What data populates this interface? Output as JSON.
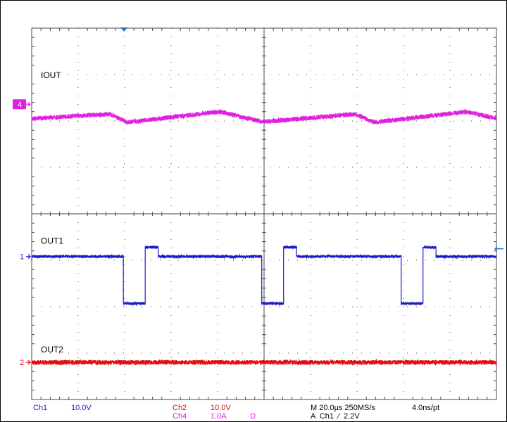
{
  "chart_data": {
    "type": "line",
    "time_per_division_us": 20,
    "divisions": {
      "x": 10,
      "y": 8
    },
    "series": [
      {
        "name": "IOUT",
        "channel_marker": "4",
        "color": "#e020e0",
        "pattern": "triangle",
        "x_divs": [
          0,
          1.68,
          2.05,
          4.05,
          4.97,
          6.95,
          7.37,
          9.35,
          10
        ],
        "y_divs": [
          1.95,
          1.85,
          2.03,
          1.8,
          2.02,
          1.85,
          2.03,
          1.8,
          1.95
        ],
        "noise_divs": 0.05,
        "ref_level_divs": 1.64
      },
      {
        "name": "OUT1",
        "channel_marker": "1",
        "color": "#1a1acc",
        "pattern": "pulse",
        "low_level_divs": 4.92,
        "high_level_divs": 5.93,
        "undershoot_level_divs": 4.72,
        "pulse_starts_divs": [
          1.97,
          4.95,
          7.95,
          10.25
        ],
        "high_width_divs": 0.47,
        "dip_width_divs": 0.28,
        "noise_divs": 0.03,
        "ref_level_divs": 4.92
      },
      {
        "name": "OUT2",
        "channel_marker": "2",
        "color": "#e01010",
        "pattern": "flat",
        "level_divs": 7.2,
        "noise_divs": 0.05,
        "ref_level_divs": 7.2
      }
    ]
  },
  "status": {
    "ch1_label": "Ch1",
    "ch1_scale": "10.0V",
    "ch2_label": "Ch2",
    "ch2_scale": "10.0V",
    "ch4_label": "Ch4",
    "ch4_scale": "1.0A",
    "ch4_unit": "Ω",
    "timebase": "M 20.0µs 250MS/s",
    "resolution": "4.0ns/pt",
    "trigger": "A  Ch1  ⁄  2.2V"
  },
  "colors": {
    "ch1": "#1a1acc",
    "ch2": "#e01010",
    "ch4": "#e020e0",
    "trigger": "#1a7ad0",
    "grid": "#4a4a4a"
  }
}
